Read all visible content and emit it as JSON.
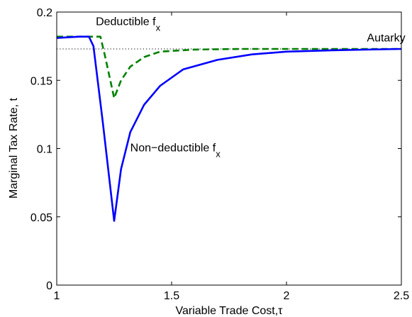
{
  "chart_data": {
    "type": "line",
    "xlabel": "Variable Trade Cost,τ",
    "ylabel": "Marginal Tax Rate, t",
    "xlim": [
      1,
      2.5
    ],
    "ylim": [
      0,
      0.2
    ],
    "xticks": [
      {
        "value": 1,
        "label": "1"
      },
      {
        "value": 1.5,
        "label": "1.5"
      },
      {
        "value": 2,
        "label": "2"
      },
      {
        "value": 2.5,
        "label": "2.5"
      }
    ],
    "yticks": [
      {
        "value": 0,
        "label": "0"
      },
      {
        "value": 0.05,
        "label": "0.05"
      },
      {
        "value": 0.1,
        "label": "0.1"
      },
      {
        "value": 0.15,
        "label": "0.15"
      },
      {
        "value": 0.2,
        "label": "0.2"
      }
    ],
    "grid": false,
    "series": [
      {
        "name": "Non−deductible f_x",
        "color": "#0000ff",
        "style": "solid",
        "points": [
          [
            1.0,
            0.181
          ],
          [
            1.05,
            0.1815
          ],
          [
            1.1,
            0.182
          ],
          [
            1.14,
            0.182
          ],
          [
            1.16,
            0.175
          ],
          [
            1.2,
            0.12
          ],
          [
            1.25,
            0.047
          ],
          [
            1.28,
            0.085
          ],
          [
            1.32,
            0.112
          ],
          [
            1.38,
            0.132
          ],
          [
            1.45,
            0.146
          ],
          [
            1.55,
            0.158
          ],
          [
            1.7,
            0.165
          ],
          [
            1.85,
            0.169
          ],
          [
            2.0,
            0.171
          ],
          [
            2.2,
            0.172
          ],
          [
            2.5,
            0.173
          ]
        ]
      },
      {
        "name": "Deductible f_x",
        "color": "#008000",
        "style": "dashed",
        "points": [
          [
            1.0,
            0.182
          ],
          [
            1.1,
            0.182
          ],
          [
            1.19,
            0.182
          ],
          [
            1.21,
            0.168
          ],
          [
            1.25,
            0.137
          ],
          [
            1.28,
            0.15
          ],
          [
            1.32,
            0.16
          ],
          [
            1.38,
            0.167
          ],
          [
            1.45,
            0.171
          ],
          [
            1.6,
            0.1725
          ],
          [
            1.8,
            0.173
          ],
          [
            2.5,
            0.173
          ]
        ]
      },
      {
        "name": "Autarky",
        "color": "#000000",
        "style": "dotted",
        "points": [
          [
            1.0,
            0.173
          ],
          [
            2.5,
            0.173
          ]
        ]
      }
    ],
    "annotations": [
      {
        "id": "deductible",
        "text": "Deductible f",
        "sub": "x",
        "x": 1.17,
        "y": 0.1905
      },
      {
        "id": "nondeductible",
        "text": "Non−deductible f",
        "sub": "x",
        "x": 1.32,
        "y": 0.098
      },
      {
        "id": "autarky",
        "text": "Autarky",
        "sub": "",
        "x": 2.35,
        "y": 0.1785
      }
    ]
  }
}
